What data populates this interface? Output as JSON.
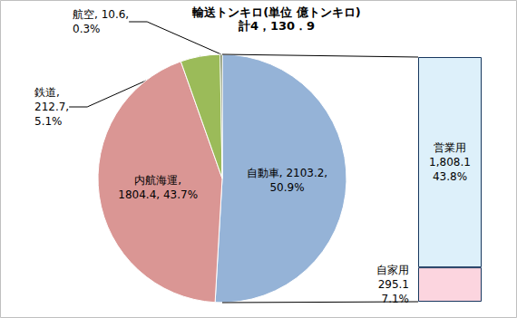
{
  "chart_data": [
    {
      "type": "pie",
      "title": "輸送トンキロ(単位 億トンキロ)",
      "subtitle": "計4，130．9",
      "categories": [
        "自動車",
        "内航海運",
        "鉄道",
        "航空"
      ],
      "values": [
        2103.2,
        1804.4,
        212.7,
        10.6
      ],
      "value_labels": [
        "自動車, 2103.2,\n50.9%",
        "内航海運,\n1804.4, 43.7%",
        "鉄道,\n212.7,\n5.1%",
        "航空, 10.6,\n0.3%"
      ],
      "colors": [
        "#95B3D7",
        "#DA9694",
        "#9BBB59",
        "#4F6228"
      ],
      "data_labels": true
    },
    {
      "type": "bar",
      "stacked": true,
      "categories": [
        null
      ],
      "series": [
        {
          "name": "自家用",
          "color": "#FCD5DF",
          "values": [
            295.1
          ],
          "value_labels": [
            "自家用\n295.1\n7.1%"
          ]
        },
        {
          "name": "営業用",
          "color": "#DDF0FA",
          "values": [
            1808.1
          ],
          "value_labels": [
            "営業用\n1,808.1\n43.8%"
          ]
        }
      ],
      "ylim": [
        0,
        2103.2
      ],
      "tick_labels": false,
      "data_labels": true
    }
  ]
}
